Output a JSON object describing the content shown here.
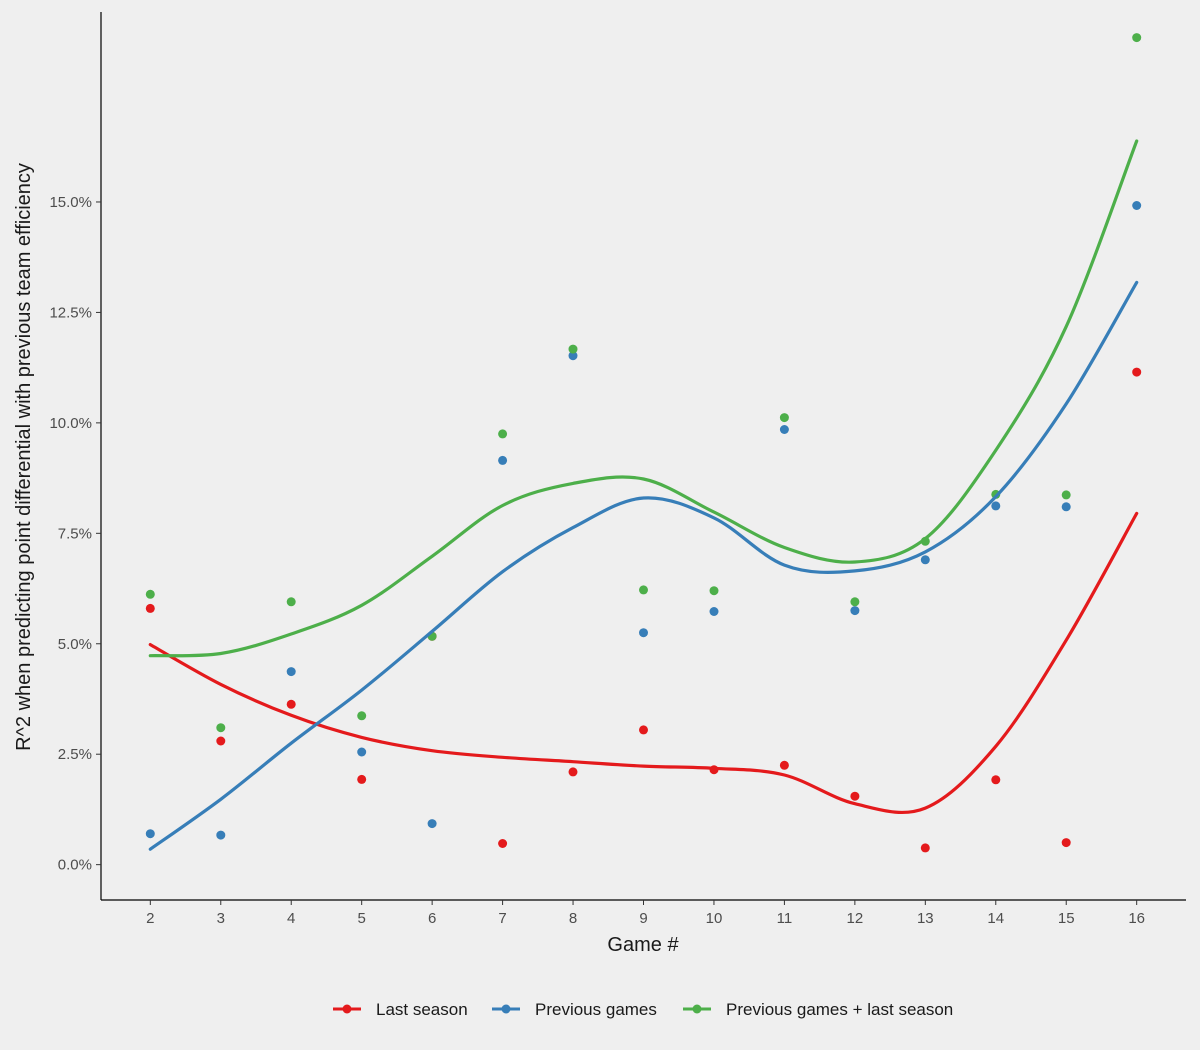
{
  "chart_data": {
    "type": "scatter",
    "xlabel": "Game #",
    "ylabel": "R^2 when predicting point differential with previous team efficiency",
    "x": [
      2,
      3,
      4,
      5,
      6,
      7,
      8,
      9,
      10,
      11,
      12,
      13,
      14,
      15,
      16
    ],
    "x_ticks": [
      "2",
      "3",
      "4",
      "5",
      "6",
      "7",
      "8",
      "9",
      "10",
      "11",
      "12",
      "13",
      "14",
      "15",
      "16"
    ],
    "xlim": [
      1.3,
      16.7
    ],
    "ylim": [
      -0.008,
      0.193
    ],
    "y_ticks": [
      0.0,
      0.025,
      0.05,
      0.075,
      0.1,
      0.125,
      0.15
    ],
    "y_tick_labels": [
      "0.0%",
      "2.5%",
      "5.0%",
      "7.5%",
      "10.0%",
      "12.5%",
      "15.0%"
    ],
    "grid": false,
    "legend_position": "bottom",
    "smoothing": "loess trend line per series",
    "series": [
      {
        "name": "Last season",
        "color": "#e41a1c",
        "points": [
          0.058,
          0.028,
          0.0363,
          0.0193,
          0.0517,
          0.0048,
          0.021,
          0.0305,
          0.0215,
          0.0225,
          0.0155,
          0.0038,
          0.0192,
          0.005,
          0.1115
        ],
        "trend": [
          0.0498,
          0.0408,
          0.0338,
          0.0288,
          0.0258,
          0.0243,
          0.0233,
          0.0223,
          0.0218,
          0.0203,
          0.0138,
          0.0128,
          0.0268,
          0.0508,
          0.0795
        ]
      },
      {
        "name": "Previous games",
        "color": "#377eb8",
        "points": [
          0.007,
          0.0067,
          0.0437,
          0.0255,
          0.0093,
          0.0915,
          0.1152,
          0.0525,
          0.0573,
          0.0985,
          0.0575,
          0.069,
          0.0812,
          0.081,
          0.1492
        ],
        "trend": [
          0.0035,
          0.0148,
          0.0275,
          0.0395,
          0.0528,
          0.0663,
          0.0763,
          0.083,
          0.0785,
          0.0678,
          0.0665,
          0.0708,
          0.0833,
          0.1043,
          0.1318
        ]
      },
      {
        "name": "Previous games + last season",
        "color": "#4daf4a",
        "points": [
          0.0612,
          0.031,
          0.0595,
          0.0337,
          0.0517,
          0.0975,
          0.1167,
          0.0622,
          0.062,
          0.1012,
          0.0595,
          0.0732,
          0.0838,
          0.0837,
          0.1872
        ],
        "trend": [
          0.0473,
          0.0478,
          0.0522,
          0.0587,
          0.0698,
          0.0813,
          0.0863,
          0.0873,
          0.0798,
          0.0718,
          0.0685,
          0.0738,
          0.0938,
          0.1218,
          0.1638
        ]
      }
    ]
  }
}
